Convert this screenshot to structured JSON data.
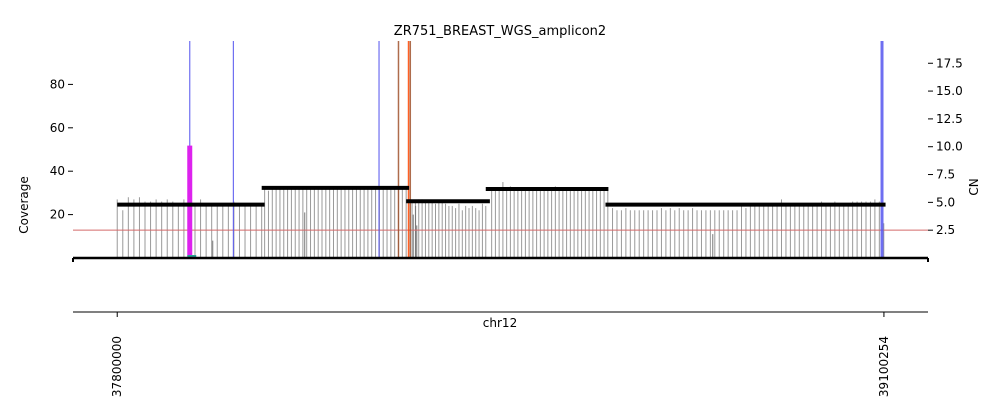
{
  "chart_data": {
    "type": "line",
    "title": "ZR751_BREAST_WGS_amplicon2",
    "left_axis": {
      "label": "Coverage",
      "ticks": [
        20,
        40,
        60,
        80
      ],
      "range": [
        0,
        100
      ]
    },
    "right_axis": {
      "label": "CN",
      "ticks": [
        "2.5",
        "5.0",
        "7.5",
        "10.0",
        "12.5",
        "15.0",
        "17.5"
      ],
      "range": [
        0,
        19.5
      ]
    },
    "x_axis": {
      "chromosome_label": "chr12",
      "range": [
        37725000,
        39175000
      ],
      "ticks": [
        {
          "value": 37800000,
          "label": "37800000"
        },
        {
          "value": 39100254,
          "label": "39100254"
        }
      ]
    },
    "cn_threshold": 2.5,
    "cn_segments": [
      {
        "start": 37800000,
        "end": 38050000,
        "cn": 4.8
      },
      {
        "start": 38045000,
        "end": 38295000,
        "cn": 6.3
      },
      {
        "start": 38290000,
        "end": 38432000,
        "cn": 5.1
      },
      {
        "start": 38425000,
        "end": 38633000,
        "cn": 6.2
      },
      {
        "start": 38628000,
        "end": 39103000,
        "cn": 4.8
      }
    ],
    "coverage_bins": [
      {
        "start": 37800000,
        "end": 38045000,
        "values": [
          27,
          22,
          28,
          27,
          28,
          26,
          26,
          27,
          26,
          27,
          26,
          25,
          27,
          26,
          25,
          27,
          25,
          25,
          24,
          25,
          25,
          26,
          25,
          24,
          25,
          25,
          25
        ]
      },
      {
        "start": 38050000,
        "end": 38290000,
        "values": [
          32,
          31,
          33,
          32,
          33,
          32,
          32,
          32,
          32,
          32,
          32,
          32,
          32,
          32,
          32,
          32,
          32,
          32,
          32,
          32,
          32,
          32,
          32,
          33,
          33,
          32,
          32,
          33,
          32,
          32,
          32,
          32,
          32,
          32,
          32,
          32,
          32,
          32
        ]
      },
      {
        "start": 38300000,
        "end": 38425000,
        "values": [
          26,
          26,
          27,
          27,
          26,
          26,
          26,
          25,
          26,
          26,
          25,
          24,
          24,
          23,
          25,
          22,
          24,
          23,
          24,
          23,
          22,
          25,
          24
        ]
      },
      {
        "start": 38435000,
        "end": 38632000,
        "values": [
          31,
          31,
          31,
          35,
          31,
          33,
          31,
          31,
          32,
          31,
          31,
          32,
          31,
          31,
          31,
          31,
          31,
          33,
          31,
          31,
          31,
          31,
          31,
          32,
          31,
          32,
          31,
          31,
          31,
          32,
          31,
          31
        ]
      },
      {
        "start": 38640000,
        "end": 39100000,
        "values": [
          23,
          22,
          22,
          23,
          22,
          22,
          22,
          22,
          22,
          22,
          22,
          23,
          22,
          23,
          22,
          23,
          22,
          22,
          23,
          22,
          22,
          22,
          22,
          22,
          22,
          22,
          22,
          22,
          22,
          24,
          23,
          25,
          25,
          25,
          25,
          25,
          25,
          25,
          27,
          25,
          25,
          25,
          25,
          25,
          25,
          25,
          25,
          26,
          25,
          25,
          26,
          25,
          25,
          25,
          26,
          26,
          26,
          26,
          26,
          27,
          26,
          16
        ]
      }
    ],
    "coverage_dips": [
      {
        "position": 37962000,
        "value": 8
      },
      {
        "position": 38118000,
        "value": 21
      },
      {
        "position": 38308000,
        "value": 15
      },
      {
        "position": 38302000,
        "value": 20
      },
      {
        "position": 38306000,
        "value": 24
      },
      {
        "position": 38810000,
        "value": 11
      }
    ],
    "breakpoints": [
      {
        "position": 37923000,
        "color": "#5555ee",
        "kind": "discordant"
      },
      {
        "position": 37997000,
        "color": "#5555ee",
        "kind": "discordant"
      },
      {
        "position": 38244000,
        "color": "#5555ee",
        "kind": "discordant"
      },
      {
        "position": 38277000,
        "color": "#a0522d",
        "kind": "discordant"
      },
      {
        "position": 38294000,
        "color": "#ff4500",
        "kind": "discordant"
      },
      {
        "position": 38297000,
        "color": "#a0522d",
        "kind": "discordant"
      },
      {
        "position": 39097000,
        "color": "#5555ee",
        "kind": "discordant"
      }
    ],
    "magenta_bar": {
      "position": 37923000,
      "cn": 10.1,
      "color": "#dd22ee"
    },
    "bottom_marker": {
      "start": 37919000,
      "end": 37934000,
      "color": "#2aa198"
    },
    "colors": {
      "segment": "#000000",
      "coverage": "#999999",
      "threshold": "#d46a6a",
      "axis": "#000000"
    },
    "legend": "none",
    "grid": false
  }
}
